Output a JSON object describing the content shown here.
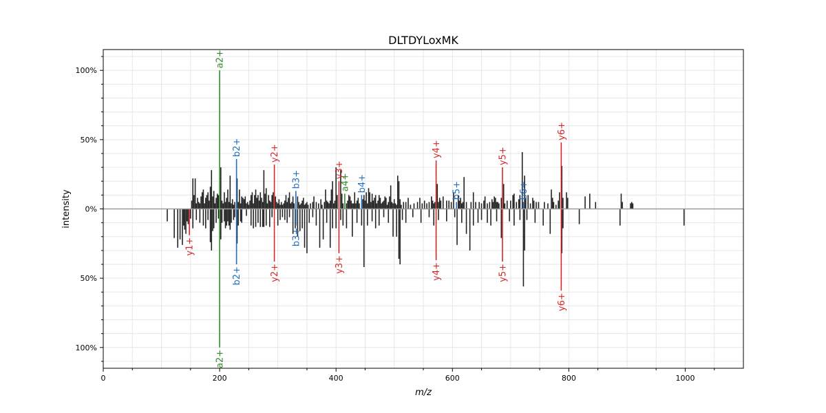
{
  "chart_data": {
    "type": "bar",
    "title": "DLTDYLoxMK",
    "xlabel": "m/z",
    "ylabel": "intensity",
    "xlim": [
      0,
      1100
    ],
    "ylim": [
      -115,
      115
    ],
    "x_ticks": [
      {
        "value": 0,
        "label": "0"
      },
      {
        "value": 200,
        "label": "200"
      },
      {
        "value": 400,
        "label": "400"
      },
      {
        "value": 600,
        "label": "600"
      },
      {
        "value": 800,
        "label": "800"
      },
      {
        "value": 1000,
        "label": "1000"
      }
    ],
    "y_ticks": [
      {
        "value": 100,
        "label": "100%"
      },
      {
        "value": 50,
        "label": "50%"
      },
      {
        "value": 0,
        "label": "0%"
      },
      {
        "value": -50,
        "label": "50%"
      },
      {
        "value": -100,
        "label": "100%"
      }
    ],
    "grid": true,
    "colors": {
      "a": "#2e8b2e",
      "b": "#1f6fc5",
      "y": "#d62728",
      "unannotated": "#222222",
      "zero_line": "#999999",
      "grid": "#e6e6e6"
    },
    "annotated_peaks": [
      {
        "mz": 200,
        "top": 100,
        "bottom": -100,
        "ion": "a",
        "label": "a2+"
      },
      {
        "mz": 229,
        "top": 36,
        "bottom": -40,
        "ion": "b",
        "label": "b2+"
      },
      {
        "mz": 294,
        "top": 32,
        "bottom": -38,
        "ion": "y",
        "label": "y2+"
      },
      {
        "mz": 331,
        "top": 13,
        "bottom": -12,
        "ion": "b",
        "label": "b3+"
      },
      {
        "mz": 405,
        "top": 20,
        "bottom": -32,
        "ion": "y",
        "label": "y3+"
      },
      {
        "mz": 415,
        "top": 11,
        "bottom": 0,
        "ion": "a",
        "label": "a4+"
      },
      {
        "mz": 444,
        "top": 10,
        "bottom": 0,
        "ion": "b",
        "label": "b4+"
      },
      {
        "mz": 572,
        "top": 35,
        "bottom": -37,
        "ion": "y",
        "label": "y4+"
      },
      {
        "mz": 607,
        "top": 5,
        "bottom": 0,
        "ion": "b",
        "label": "b5+"
      },
      {
        "mz": 686,
        "top": 30,
        "bottom": -38,
        "ion": "y",
        "label": "y5+"
      },
      {
        "mz": 722,
        "top": 5,
        "bottom": 0,
        "ion": "b",
        "label": "b6+"
      },
      {
        "mz": 787,
        "top": 48,
        "bottom": -59,
        "ion": "y",
        "label": "y6+"
      },
      {
        "mz": 148,
        "top": 0,
        "bottom": -19,
        "ion": "y",
        "label": "y1+"
      }
    ],
    "peaks_top": [
      [
        152,
        6
      ],
      [
        154,
        22
      ],
      [
        156,
        10
      ],
      [
        158,
        22
      ],
      [
        160,
        4
      ],
      [
        162,
        8
      ],
      [
        164,
        5
      ],
      [
        166,
        4
      ],
      [
        168,
        9
      ],
      [
        170,
        12
      ],
      [
        172,
        14
      ],
      [
        174,
        4
      ],
      [
        176,
        8
      ],
      [
        178,
        10
      ],
      [
        180,
        12
      ],
      [
        182,
        6
      ],
      [
        184,
        16
      ],
      [
        186,
        28
      ],
      [
        188,
        9
      ],
      [
        190,
        13
      ],
      [
        192,
        4
      ],
      [
        194,
        8
      ],
      [
        196,
        11
      ],
      [
        198,
        10
      ],
      [
        202,
        30
      ],
      [
        204,
        6
      ],
      [
        206,
        4
      ],
      [
        208,
        12
      ],
      [
        210,
        5
      ],
      [
        212,
        8
      ],
      [
        214,
        14
      ],
      [
        216,
        5
      ],
      [
        218,
        24
      ],
      [
        220,
        4
      ],
      [
        222,
        7
      ],
      [
        224,
        3
      ],
      [
        226,
        5
      ],
      [
        230,
        22
      ],
      [
        232,
        5
      ],
      [
        234,
        14
      ],
      [
        236,
        4
      ],
      [
        238,
        9
      ],
      [
        240,
        8
      ],
      [
        242,
        7
      ],
      [
        244,
        9
      ],
      [
        246,
        4
      ],
      [
        248,
        5
      ],
      [
        250,
        3
      ],
      [
        252,
        6
      ],
      [
        254,
        10
      ],
      [
        256,
        12
      ],
      [
        258,
        4
      ],
      [
        260,
        10
      ],
      [
        262,
        14
      ],
      [
        264,
        8
      ],
      [
        266,
        10
      ],
      [
        268,
        6
      ],
      [
        270,
        12
      ],
      [
        272,
        8
      ],
      [
        274,
        5
      ],
      [
        276,
        28
      ],
      [
        278,
        11
      ],
      [
        280,
        15
      ],
      [
        282,
        4
      ],
      [
        284,
        10
      ],
      [
        286,
        6
      ],
      [
        288,
        5
      ],
      [
        290,
        10
      ],
      [
        292,
        12
      ],
      [
        296,
        9
      ],
      [
        298,
        5
      ],
      [
        300,
        4
      ],
      [
        302,
        7
      ],
      [
        304,
        3
      ],
      [
        306,
        5
      ],
      [
        308,
        3
      ],
      [
        310,
        4
      ],
      [
        312,
        6
      ],
      [
        314,
        10
      ],
      [
        316,
        5
      ],
      [
        318,
        8
      ],
      [
        320,
        12
      ],
      [
        322,
        4
      ],
      [
        324,
        5
      ],
      [
        326,
        9
      ],
      [
        328,
        4
      ],
      [
        334,
        9
      ],
      [
        336,
        5
      ],
      [
        338,
        3
      ],
      [
        340,
        4
      ],
      [
        342,
        6
      ],
      [
        344,
        8
      ],
      [
        346,
        3
      ],
      [
        348,
        4
      ],
      [
        350,
        5
      ],
      [
        352,
        3
      ],
      [
        356,
        4
      ],
      [
        360,
        5
      ],
      [
        362,
        9
      ],
      [
        366,
        5
      ],
      [
        370,
        4
      ],
      [
        374,
        7
      ],
      [
        376,
        3
      ],
      [
        380,
        5
      ],
      [
        382,
        14
      ],
      [
        384,
        6
      ],
      [
        386,
        5
      ],
      [
        388,
        4
      ],
      [
        390,
        6
      ],
      [
        392,
        14
      ],
      [
        394,
        20
      ],
      [
        396,
        4
      ],
      [
        398,
        6
      ],
      [
        400,
        30
      ],
      [
        402,
        10
      ],
      [
        408,
        28
      ],
      [
        410,
        11
      ],
      [
        412,
        4
      ],
      [
        418,
        4
      ],
      [
        420,
        6
      ],
      [
        422,
        10
      ],
      [
        424,
        9
      ],
      [
        426,
        6
      ],
      [
        428,
        4
      ],
      [
        430,
        4
      ],
      [
        432,
        12
      ],
      [
        434,
        4
      ],
      [
        436,
        6
      ],
      [
        438,
        8
      ],
      [
        440,
        4
      ],
      [
        446,
        7
      ],
      [
        448,
        10
      ],
      [
        450,
        6
      ],
      [
        452,
        12
      ],
      [
        454,
        4
      ],
      [
        456,
        15
      ],
      [
        458,
        12
      ],
      [
        460,
        5
      ],
      [
        462,
        11
      ],
      [
        464,
        6
      ],
      [
        466,
        8
      ],
      [
        468,
        10
      ],
      [
        470,
        4
      ],
      [
        472,
        6
      ],
      [
        474,
        10
      ],
      [
        476,
        8
      ],
      [
        478,
        4
      ],
      [
        480,
        5
      ],
      [
        482,
        6
      ],
      [
        484,
        9
      ],
      [
        486,
        8
      ],
      [
        488,
        3
      ],
      [
        490,
        5
      ],
      [
        492,
        9
      ],
      [
        494,
        17
      ],
      [
        496,
        5
      ],
      [
        498,
        4
      ],
      [
        500,
        7
      ],
      [
        502,
        4
      ],
      [
        504,
        3
      ],
      [
        506,
        24
      ],
      [
        508,
        20
      ],
      [
        510,
        7
      ],
      [
        512,
        3
      ],
      [
        516,
        5
      ],
      [
        520,
        5
      ],
      [
        524,
        8
      ],
      [
        528,
        3
      ],
      [
        534,
        4
      ],
      [
        540,
        5
      ],
      [
        544,
        8
      ],
      [
        548,
        4
      ],
      [
        552,
        6
      ],
      [
        556,
        4
      ],
      [
        560,
        5
      ],
      [
        564,
        9
      ],
      [
        566,
        6
      ],
      [
        568,
        4
      ],
      [
        570,
        5
      ],
      [
        574,
        18
      ],
      [
        576,
        5
      ],
      [
        578,
        8
      ],
      [
        580,
        6
      ],
      [
        584,
        9
      ],
      [
        590,
        6
      ],
      [
        594,
        6
      ],
      [
        598,
        5
      ],
      [
        602,
        12
      ],
      [
        610,
        10
      ],
      [
        612,
        6
      ],
      [
        614,
        8
      ],
      [
        616,
        4
      ],
      [
        618,
        5
      ],
      [
        620,
        23
      ],
      [
        624,
        5
      ],
      [
        632,
        5
      ],
      [
        636,
        12
      ],
      [
        640,
        5
      ],
      [
        646,
        5
      ],
      [
        650,
        4
      ],
      [
        654,
        6
      ],
      [
        656,
        9
      ],
      [
        660,
        4
      ],
      [
        664,
        5
      ],
      [
        668,
        7
      ],
      [
        670,
        5
      ],
      [
        672,
        9
      ],
      [
        674,
        8
      ],
      [
        676,
        5
      ],
      [
        678,
        5
      ],
      [
        680,
        4
      ],
      [
        684,
        8
      ],
      [
        688,
        18
      ],
      [
        690,
        4
      ],
      [
        694,
        6
      ],
      [
        700,
        6
      ],
      [
        704,
        10
      ],
      [
        706,
        11
      ],
      [
        710,
        5
      ],
      [
        714,
        7
      ],
      [
        716,
        10
      ],
      [
        720,
        41
      ],
      [
        724,
        24
      ],
      [
        726,
        8
      ],
      [
        730,
        10
      ],
      [
        734,
        4
      ],
      [
        738,
        8
      ],
      [
        740,
        6
      ],
      [
        744,
        5
      ],
      [
        748,
        5
      ],
      [
        758,
        5
      ],
      [
        764,
        4
      ],
      [
        770,
        14
      ],
      [
        772,
        8
      ],
      [
        774,
        5
      ],
      [
        778,
        3
      ],
      [
        782,
        6
      ],
      [
        784,
        12
      ],
      [
        788,
        31
      ],
      [
        790,
        8
      ],
      [
        796,
        12
      ],
      [
        798,
        8
      ],
      [
        828,
        9
      ],
      [
        836,
        11
      ],
      [
        846,
        5
      ],
      [
        890,
        11
      ],
      [
        892,
        5
      ],
      [
        906,
        4
      ],
      [
        908,
        5
      ],
      [
        910,
        4
      ]
    ],
    "peaks_bottom": [
      [
        110,
        -9
      ],
      [
        122,
        -21
      ],
      [
        128,
        -28
      ],
      [
        132,
        -22
      ],
      [
        136,
        -26
      ],
      [
        138,
        -12
      ],
      [
        140,
        -15
      ],
      [
        142,
        -18
      ],
      [
        144,
        -9
      ],
      [
        146,
        -11
      ],
      [
        150,
        -7
      ],
      [
        154,
        -14
      ],
      [
        160,
        -8
      ],
      [
        166,
        -10
      ],
      [
        172,
        -12
      ],
      [
        176,
        -14
      ],
      [
        180,
        -8
      ],
      [
        184,
        -24
      ],
      [
        186,
        -30
      ],
      [
        188,
        -16
      ],
      [
        190,
        -14
      ],
      [
        194,
        -10
      ],
      [
        198,
        -7
      ],
      [
        202,
        -22
      ],
      [
        204,
        -10
      ],
      [
        208,
        -9
      ],
      [
        210,
        -14
      ],
      [
        212,
        -12
      ],
      [
        214,
        -9
      ],
      [
        216,
        -12
      ],
      [
        218,
        -15
      ],
      [
        220,
        -10
      ],
      [
        224,
        -8
      ],
      [
        226,
        -6
      ],
      [
        230,
        -25
      ],
      [
        232,
        -12
      ],
      [
        236,
        -9
      ],
      [
        238,
        -10
      ],
      [
        246,
        -5
      ],
      [
        254,
        -12
      ],
      [
        258,
        -14
      ],
      [
        262,
        -13
      ],
      [
        266,
        -10
      ],
      [
        270,
        -13
      ],
      [
        274,
        -13
      ],
      [
        276,
        -13
      ],
      [
        280,
        -12
      ],
      [
        286,
        -13
      ],
      [
        290,
        -6
      ],
      [
        300,
        -12
      ],
      [
        304,
        -8
      ],
      [
        308,
        -6
      ],
      [
        312,
        -8
      ],
      [
        316,
        -10
      ],
      [
        320,
        -6
      ],
      [
        326,
        -18
      ],
      [
        330,
        -14
      ],
      [
        334,
        -20
      ],
      [
        338,
        -16
      ],
      [
        342,
        -14
      ],
      [
        346,
        -28
      ],
      [
        350,
        -32
      ],
      [
        354,
        -10
      ],
      [
        360,
        -6
      ],
      [
        366,
        -12
      ],
      [
        372,
        -28
      ],
      [
        378,
        -22
      ],
      [
        384,
        -10
      ],
      [
        390,
        -28
      ],
      [
        394,
        -14
      ],
      [
        400,
        -14
      ],
      [
        408,
        -8
      ],
      [
        412,
        -12
      ],
      [
        418,
        -14
      ],
      [
        428,
        -20
      ],
      [
        436,
        -10
      ],
      [
        444,
        -12
      ],
      [
        448,
        -42
      ],
      [
        454,
        -12
      ],
      [
        462,
        -9
      ],
      [
        468,
        -14
      ],
      [
        474,
        -12
      ],
      [
        482,
        -6
      ],
      [
        490,
        -10
      ],
      [
        498,
        -20
      ],
      [
        504,
        -20
      ],
      [
        508,
        -36
      ],
      [
        510,
        -40
      ],
      [
        514,
        -8
      ],
      [
        520,
        -10
      ],
      [
        532,
        -6
      ],
      [
        546,
        -10
      ],
      [
        560,
        -6
      ],
      [
        568,
        -12
      ],
      [
        576,
        -8
      ],
      [
        590,
        -9
      ],
      [
        604,
        -6
      ],
      [
        608,
        -26
      ],
      [
        616,
        -10
      ],
      [
        624,
        -18
      ],
      [
        630,
        -30
      ],
      [
        636,
        -12
      ],
      [
        644,
        -10
      ],
      [
        650,
        -8
      ],
      [
        660,
        -10
      ],
      [
        666,
        -12
      ],
      [
        676,
        -9
      ],
      [
        684,
        -21
      ],
      [
        698,
        -9
      ],
      [
        706,
        -12
      ],
      [
        716,
        -8
      ],
      [
        722,
        -56
      ],
      [
        724,
        -30
      ],
      [
        728,
        -8
      ],
      [
        742,
        -10
      ],
      [
        756,
        -12
      ],
      [
        768,
        -18
      ],
      [
        788,
        -32
      ],
      [
        790,
        -14
      ],
      [
        818,
        -11
      ],
      [
        888,
        -12
      ],
      [
        998,
        -12
      ]
    ]
  }
}
